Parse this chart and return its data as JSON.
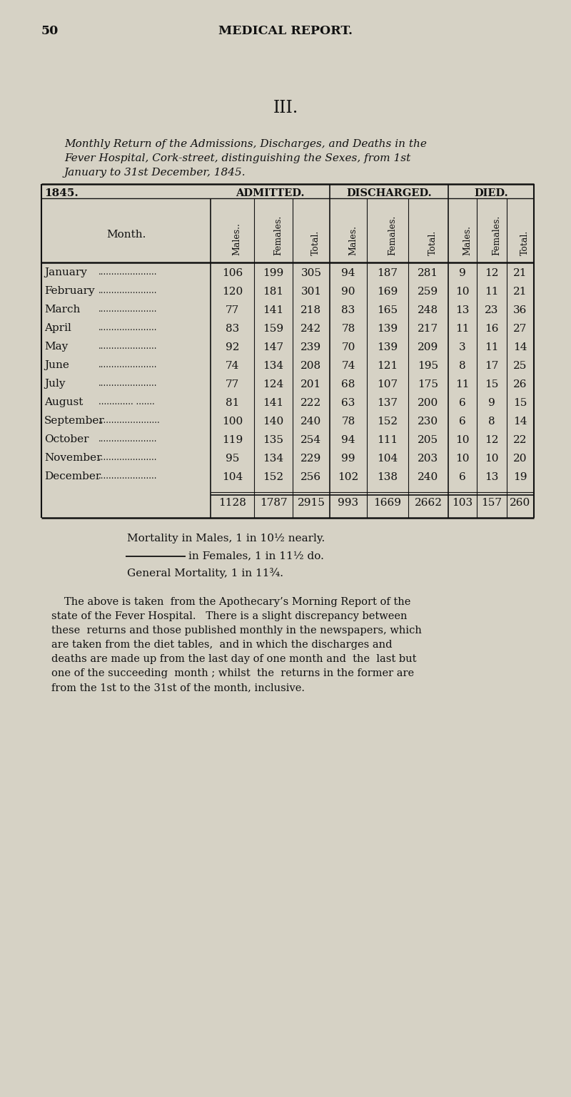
{
  "page_number": "50",
  "page_header": "MEDICAL REPORT.",
  "section_numeral": "III.",
  "title_line1": "Monthly Return of the Admissions, Discharges, and Deaths in the",
  "title_line2": "Fever Hospital, Cork-street, distinguishing the Sexes, from 1st",
  "title_line3": "January to 31st December, 1845.",
  "year_label": "1845.",
  "group_headers": [
    "ADMITTED.",
    "DISCHARGED.",
    "DIED."
  ],
  "month_col_header": "Month.",
  "col_sub_headers": [
    "Males..",
    "Females.",
    "Total.",
    "Males.",
    "Females.",
    "Total.",
    "Males.",
    "Females.",
    "Total."
  ],
  "months": [
    "January",
    "February",
    "March",
    "April",
    "May",
    "June",
    "July",
    "August",
    "September",
    "October",
    "November",
    "December"
  ],
  "month_dots": [
    "......................",
    "......................",
    "......................",
    "......................",
    "......................",
    "......................",
    "......................",
    "............. .......",
    "...........….........",
    "......................",
    "......................",
    "......................"
  ],
  "data": [
    [
      106,
      199,
      305,
      94,
      187,
      281,
      9,
      12,
      21
    ],
    [
      120,
      181,
      301,
      90,
      169,
      259,
      10,
      11,
      21
    ],
    [
      77,
      141,
      218,
      83,
      165,
      248,
      13,
      23,
      36
    ],
    [
      83,
      159,
      242,
      78,
      139,
      217,
      11,
      16,
      27
    ],
    [
      92,
      147,
      239,
      70,
      139,
      209,
      3,
      11,
      14
    ],
    [
      74,
      134,
      208,
      74,
      121,
      195,
      8,
      17,
      25
    ],
    [
      77,
      124,
      201,
      68,
      107,
      175,
      11,
      15,
      26
    ],
    [
      81,
      141,
      222,
      63,
      137,
      200,
      6,
      9,
      15
    ],
    [
      100,
      140,
      240,
      78,
      152,
      230,
      6,
      8,
      14
    ],
    [
      119,
      135,
      254,
      94,
      111,
      205,
      10,
      12,
      22
    ],
    [
      95,
      134,
      229,
      99,
      104,
      203,
      10,
      10,
      20
    ],
    [
      104,
      152,
      256,
      102,
      138,
      240,
      6,
      13,
      19
    ]
  ],
  "totals": [
    1128,
    1787,
    2915,
    993,
    1669,
    2662,
    103,
    157,
    260
  ],
  "mortality_line1": "Mortality in Males, 1 in 10½ nearly.",
  "mortality_line2": "in Females, 1 in 11½ do.",
  "mortality_line3": "General Mortality, 1 in 11¾.",
  "footnote_line1": "The above is taken  from the Apothecary’s Morning Report of the",
  "footnote_line2": "state of the Fever Hospital.   There is a slight discrepancy between",
  "footnote_line3": "these  returns and those published monthly in the newspapers, which",
  "footnote_line4": "are taken from the diet tables,  and in which the discharges and",
  "footnote_line5": "deaths are made up from the last day of one month and  the  last but",
  "footnote_line6": "one of the succeeding  month ; whilst  the  returns in the former are",
  "footnote_line7": "from the 1st to the 31st of the month, inclusive.",
  "bg_color": "#d6d2c5",
  "text_color": "#111111",
  "line_color": "#111111"
}
